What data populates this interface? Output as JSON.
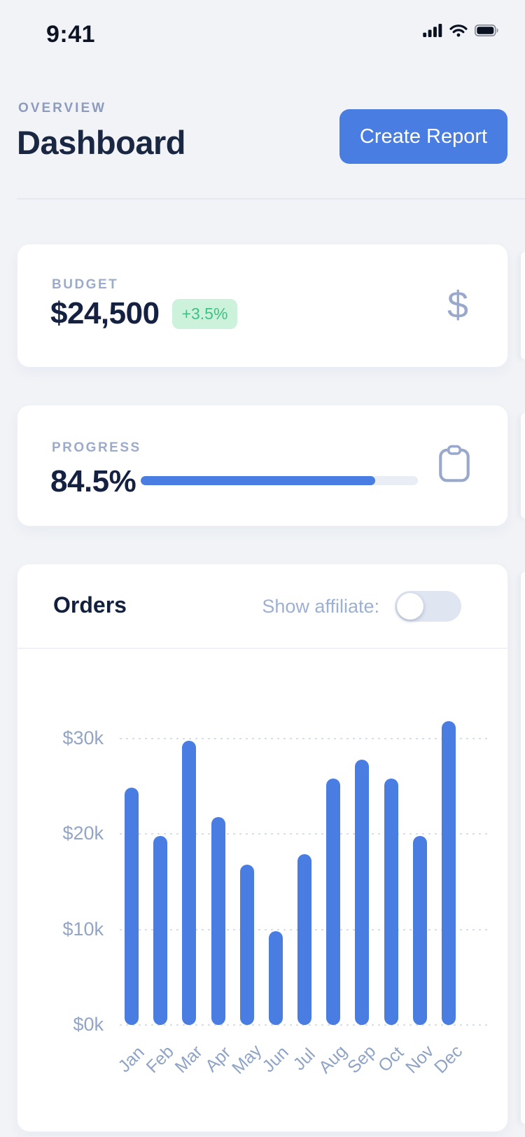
{
  "status_bar": {
    "time": "9:41"
  },
  "header": {
    "eyebrow": "OVERVIEW",
    "title": "Dashboard",
    "create_report_label": "Create Report"
  },
  "budget_card": {
    "label": "BUDGET",
    "value": "$24,500",
    "delta": "+3.5%",
    "icon": "dollar-icon"
  },
  "progress_card": {
    "label": "PROGRESS",
    "value": "84.5%",
    "percent": 84.5,
    "icon": "clipboard-icon"
  },
  "orders_card": {
    "title": "Orders",
    "toggle_label": "Show affiliate:",
    "toggle_on": false
  },
  "chart_data": {
    "type": "bar",
    "title": "Orders",
    "categories": [
      "Jan",
      "Feb",
      "Mar",
      "Apr",
      "May",
      "Jun",
      "Jul",
      "Aug",
      "Sep",
      "Oct",
      "Nov",
      "Dec"
    ],
    "values": [
      24.9,
      19.8,
      29.8,
      21.8,
      16.8,
      9.8,
      17.9,
      25.8,
      27.8,
      25.8,
      19.8,
      31.8
    ],
    "unit": "$k (thousand dollars)",
    "xlabel": "",
    "ylabel": "",
    "ytick_values": [
      0,
      10,
      20,
      30
    ],
    "ytick_labels": [
      "$0k",
      "$10k",
      "$20k",
      "$30k"
    ],
    "ylim": [
      0,
      33
    ],
    "grid": "horizontal-dotted",
    "legend": "none",
    "bar_color": "#4a7de2"
  },
  "colors": {
    "accent_blue": "#4a7de2",
    "navy_text": "#152140",
    "muted_label": "#9cabca",
    "green_text": "#41c086",
    "green_bg": "#cdf2dc",
    "page_bg": "#f1f3f7",
    "card_bg": "#ffffff"
  }
}
